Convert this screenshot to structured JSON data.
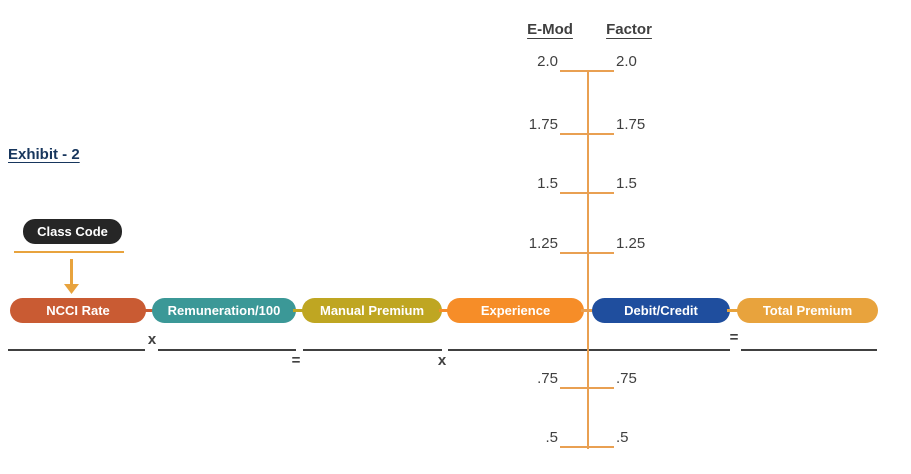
{
  "title": {
    "text": "Exhibit - 2",
    "color": "#17365D"
  },
  "class_code": {
    "label": "Class Code",
    "badge_color": "#262626",
    "accent_color": "#E8A33D"
  },
  "formula_row": {
    "pills": [
      {
        "label": "NCCI Rate",
        "color": "#C95B33"
      },
      {
        "label": "Remuneration/100",
        "color": "#3B9897"
      },
      {
        "label": "Manual Premium",
        "color": "#BFA622"
      },
      {
        "label": "Experience",
        "color": "#F68D28"
      },
      {
        "label": "Debit/Credit",
        "color": "#1F4E9E"
      },
      {
        "label": "Total Premium",
        "color": "#E8A33D"
      }
    ],
    "connector_colors": [
      "#C95B33",
      "#BFA622",
      "#F68D28",
      "#E9A052",
      "#E8A33D"
    ],
    "operators": [
      {
        "symbol": "x",
        "position": "above-line"
      },
      {
        "symbol": "=",
        "position": "below-line"
      },
      {
        "symbol": "x",
        "position": "below-line"
      },
      {
        "symbol": "=",
        "position": "above-line"
      }
    ],
    "baseline_color": "#404040"
  },
  "scale": {
    "headers": {
      "left": "E-Mod",
      "right": "Factor"
    },
    "ticks": [
      {
        "emod": "2.0",
        "factor": "2.0"
      },
      {
        "emod": "1.75",
        "factor": "1.75"
      },
      {
        "emod": "1.5",
        "factor": "1.5"
      },
      {
        "emod": "1.25",
        "factor": "1.25"
      },
      {
        "emod": ".75",
        "factor": ".75"
      },
      {
        "emod": ".5",
        "factor": ".5"
      }
    ],
    "line_color": "#E9A052",
    "text_color": "#3F3F3F"
  }
}
